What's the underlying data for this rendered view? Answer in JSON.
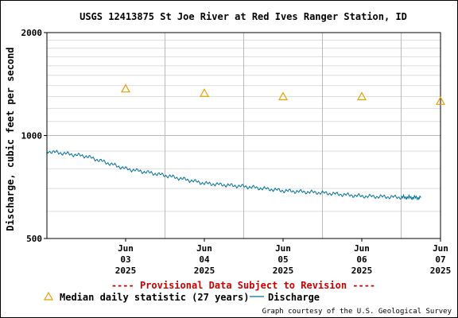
{
  "chart_data": {
    "type": "line",
    "title": "USGS 12413875 St Joe River at Red Ives Ranger Station, ID",
    "ylabel": "Discharge, cubic feet per second",
    "y_scale": "log",
    "ylim": [
      500,
      2000
    ],
    "y_ticks": [
      {
        "value": 500,
        "label": "500"
      },
      {
        "value": 1000,
        "label": "1000"
      },
      {
        "value": 2000,
        "label": "2000"
      }
    ],
    "xlim": [
      "2025-06-02 12:00",
      "2025-06-07 12:00"
    ],
    "x_ticks": [
      {
        "date": "2025-06-03",
        "lines": [
          "Jun",
          "03",
          "2025"
        ]
      },
      {
        "date": "2025-06-04",
        "lines": [
          "Jun",
          "04",
          "2025"
        ]
      },
      {
        "date": "2025-06-05",
        "lines": [
          "Jun",
          "05",
          "2025"
        ]
      },
      {
        "date": "2025-06-06",
        "lines": [
          "Jun",
          "06",
          "2025"
        ]
      },
      {
        "date": "2025-06-07",
        "lines": [
          "Jun",
          "07",
          "2025"
        ]
      }
    ],
    "grid": true,
    "series": [
      {
        "name": "Median daily statistic (27 years)",
        "kind": "marker",
        "color": "#e8a000",
        "x": [
          "2025-06-03 12:00",
          "2025-06-04 12:00",
          "2025-06-05 12:00",
          "2025-06-06 12:00",
          "2025-06-07 12:00"
        ],
        "y": [
          1370,
          1330,
          1300,
          1300,
          1260
        ]
      },
      {
        "name": "Discharge",
        "kind": "line",
        "color": "#00709a",
        "x": [
          "2025-06-02 12:00",
          "2025-06-03 00:00",
          "2025-06-03 12:00",
          "2025-06-04 00:00",
          "2025-06-04 12:00",
          "2025-06-05 00:00",
          "2025-06-05 12:00",
          "2025-06-06 00:00",
          "2025-06-06 12:00",
          "2025-06-07 00:00",
          "2025-06-07 06:00"
        ],
        "y": [
          900,
          870,
          800,
          765,
          725,
          710,
          690,
          680,
          665,
          660,
          658
        ]
      }
    ],
    "legend": {
      "position": "bottom-left",
      "entries": [
        "Median daily statistic (27 years)",
        "Discharge"
      ]
    },
    "annotations": [
      "---- Provisional Data Subject to Revision ----"
    ],
    "credit": "Graph courtesy of the U.S. Geological Survey"
  },
  "colors": {
    "median": "#e8a000",
    "discharge": "#00709a",
    "provisional": "#cc0000",
    "grid_major": "#bbbbbb",
    "grid_minor": "#dddddd"
  }
}
